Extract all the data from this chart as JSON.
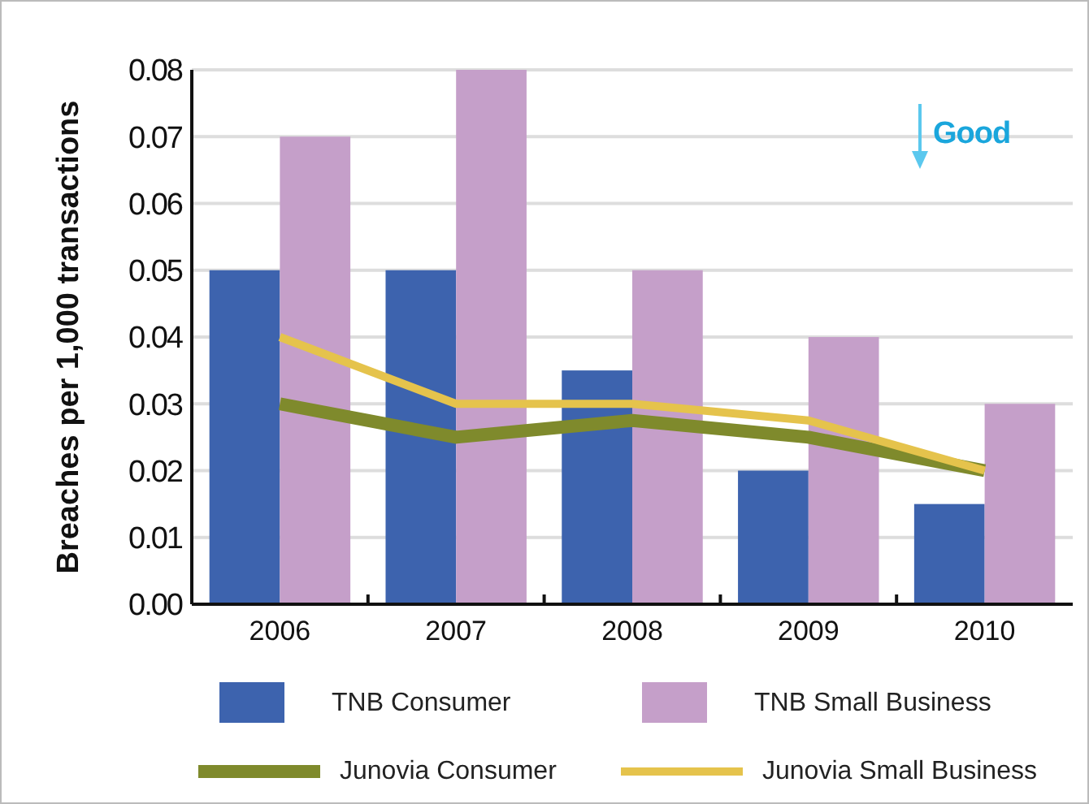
{
  "chart_data": {
    "type": "bar",
    "ylabel": "Breaches per 1,000 transactions",
    "categories": [
      "2006",
      "2007",
      "2008",
      "2009",
      "2010"
    ],
    "series": [
      {
        "name": "TNB Consumer",
        "color": "#3d63ae",
        "values": [
          0.05,
          0.05,
          0.035,
          0.02,
          0.015
        ]
      },
      {
        "name": "TNB Small Business",
        "color": "#c59fc9",
        "values": [
          0.07,
          0.08,
          0.05,
          0.04,
          0.03
        ]
      },
      {
        "name": "Junovia Consumer",
        "type": "line",
        "color": "#7f8a2c",
        "values": [
          0.03,
          0.025,
          0.0275,
          0.025,
          0.02
        ]
      },
      {
        "name": "Junovia Small Business",
        "type": "line",
        "color": "#e5c34c",
        "values": [
          0.04,
          0.03,
          0.03,
          0.0275,
          0.02
        ]
      }
    ],
    "ylim": [
      0,
      0.08
    ],
    "yticks": [
      {
        "value": 0,
        "label": "0.00"
      },
      0.01,
      0.02,
      0.03,
      0.04,
      0.05,
      0.06,
      0.07,
      0.08
    ],
    "grid": "y",
    "legend": "bottom",
    "annotations": [
      "Good"
    ]
  }
}
